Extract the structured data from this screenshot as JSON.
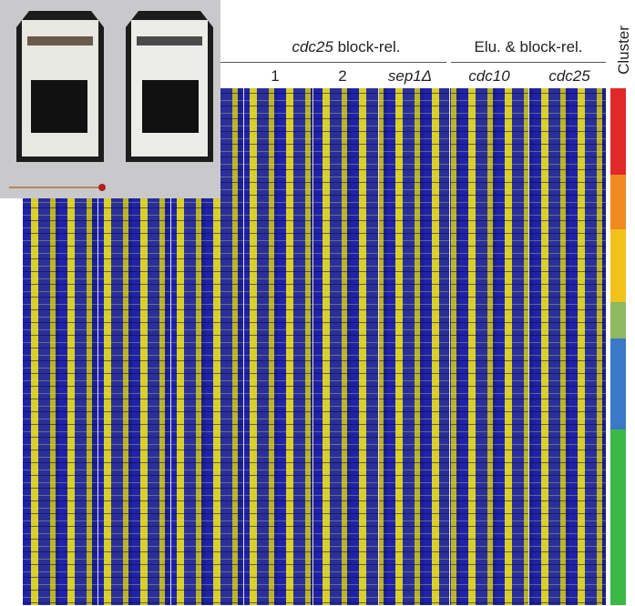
{
  "header": {
    "groups": [
      {
        "label_parts": [
          "cdc25",
          " block-rel."
        ],
        "columns": [
          "1",
          "2",
          "sep1Δ"
        ]
      },
      {
        "label_parts": [
          "Elu. & block-rel."
        ],
        "columns": [
          "cdc10",
          "cdc25"
        ]
      }
    ],
    "cluster_label": "Cluster"
  }
}
